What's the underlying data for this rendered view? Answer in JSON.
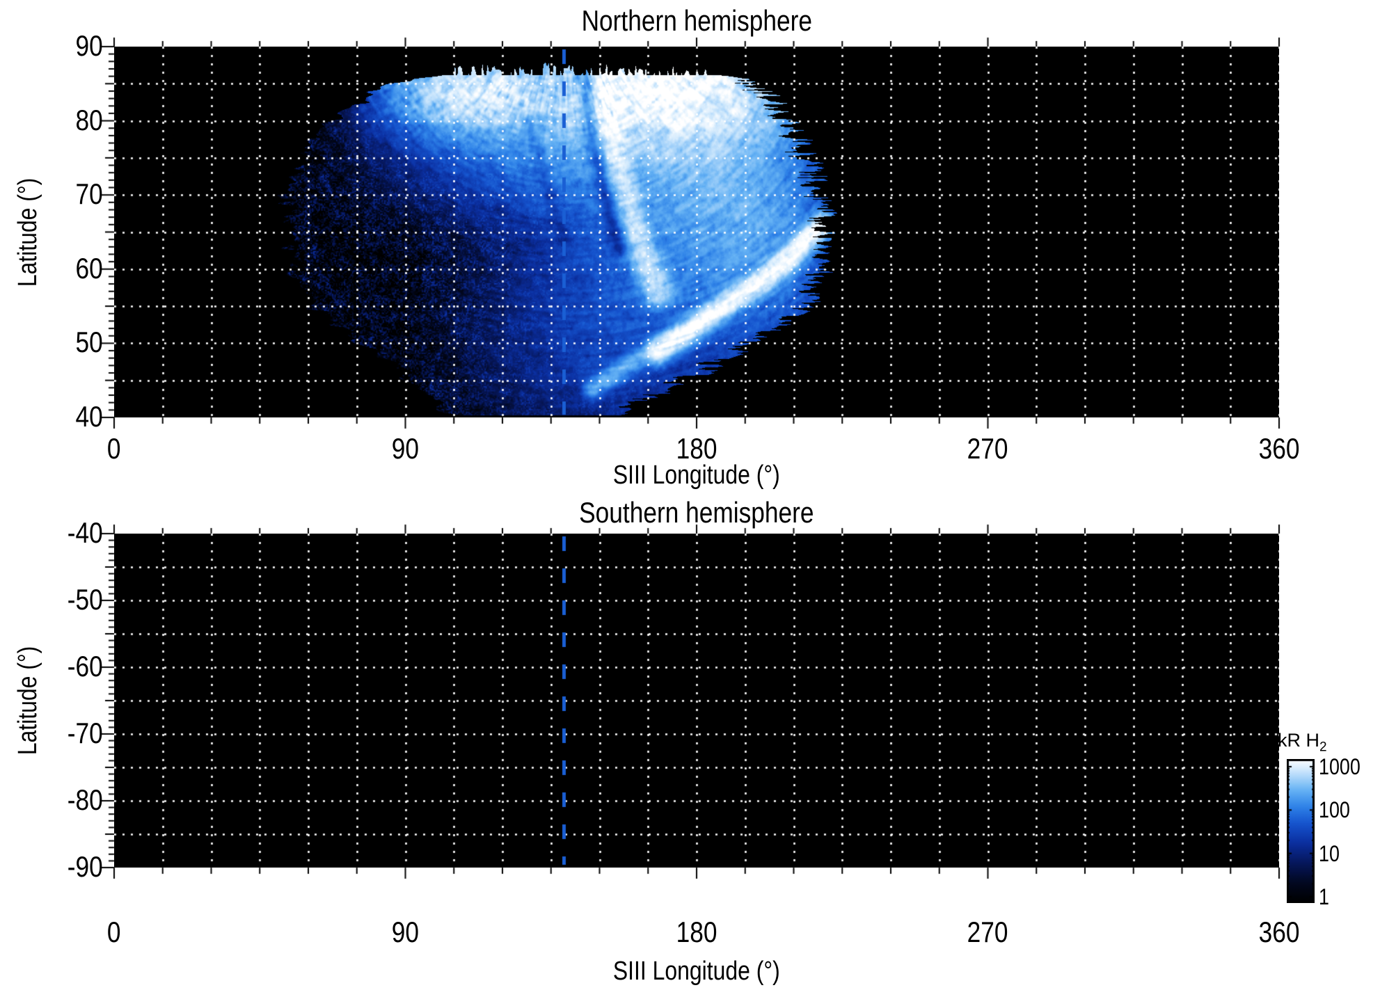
{
  "panels": {
    "north": {
      "title": "Northern hemisphere",
      "xlabel": "SIII Longitude (°)",
      "ylabel": "Latitude (°)",
      "x_tick_labels": [
        "0",
        "90",
        "180",
        "270",
        "360"
      ],
      "y_tick_labels": [
        "90",
        "80",
        "70",
        "60",
        "50",
        "40"
      ]
    },
    "south": {
      "title": "Southern hemisphere",
      "xlabel": "SIII Longitude (°)",
      "ylabel": "Latitude (°)",
      "x_tick_labels": [
        "0",
        "90",
        "180",
        "270",
        "360"
      ],
      "y_tick_labels": [
        "-40",
        "-50",
        "-60",
        "-70",
        "-80",
        "-90"
      ]
    }
  },
  "colorbar": {
    "label_main": "kR H",
    "label_sub": "2",
    "tick_labels": [
      "1000",
      "100",
      "10",
      "1"
    ],
    "tick_values": [
      1000,
      100,
      10,
      1
    ],
    "scale": "log"
  },
  "chart_data": [
    {
      "type": "heatmap",
      "title": "Northern hemisphere",
      "xlabel": "SIII Longitude (°)",
      "ylabel": "Latitude (°)",
      "xlim": [
        0,
        360
      ],
      "ylim": [
        40,
        90
      ],
      "x_major_ticks": [
        0,
        90,
        180,
        270,
        360
      ],
      "x_minor_step": 15,
      "y_major_step": 10,
      "y_minor_step": 1,
      "grid": {
        "x_step": 15,
        "y_step": 5,
        "style": "dotted",
        "color": "#ffffff"
      },
      "background": "#000000",
      "marker_line": {
        "x": 139,
        "style": "dashed",
        "color": "#1a5fd4"
      },
      "value_units": "kR H2",
      "value_scale": "log",
      "value_range": [
        1,
        1000
      ],
      "colormap_stops": [
        [
          0,
          "#000000"
        ],
        [
          0.14,
          "#020820"
        ],
        [
          0.28,
          "#06175c"
        ],
        [
          0.42,
          "#0b2fa0"
        ],
        [
          0.55,
          "#1553cd"
        ],
        [
          0.67,
          "#2f83e8"
        ],
        [
          0.78,
          "#64b1f4"
        ],
        [
          0.87,
          "#a8d4fa"
        ],
        [
          0.94,
          "#dbeefd"
        ],
        [
          1,
          "#ffffff"
        ]
      ],
      "coverage_boundary": [
        {
          "lat": 87.8,
          "lon_min": 128,
          "lon_max": 158
        },
        {
          "lat": 87.0,
          "lon_min": 112,
          "lon_max": 176
        },
        {
          "lat": 86.0,
          "lon_min": 98,
          "lon_max": 188
        },
        {
          "lat": 85.0,
          "lon_min": 84,
          "lon_max": 197
        },
        {
          "lat": 80.0,
          "lon_min": 66,
          "lon_max": 208
        },
        {
          "lat": 75.0,
          "lon_min": 57,
          "lon_max": 214
        },
        {
          "lat": 70.0,
          "lon_min": 54,
          "lon_max": 218
        },
        {
          "lat": 65.0,
          "lon_min": 54,
          "lon_max": 220
        },
        {
          "lat": 60.0,
          "lon_min": 55,
          "lon_max": 219
        },
        {
          "lat": 55.0,
          "lon_min": 62,
          "lon_max": 214
        },
        {
          "lat": 50.0,
          "lon_min": 76,
          "lon_max": 196
        },
        {
          "lat": 45.0,
          "lon_min": 92,
          "lon_max": 176
        },
        {
          "lat": 40.0,
          "lon_min": 104,
          "lon_max": 152
        }
      ],
      "features": {
        "blobs": [
          {
            "lon": 112,
            "lat": 84.5,
            "sx": 13,
            "sy": 3.5,
            "amp": 1000
          },
          {
            "lon": 170,
            "lat": 84.5,
            "sx": 19,
            "sy": 4.5,
            "amp": 1400
          },
          {
            "lon": 152,
            "lat": 80.0,
            "sx": 26,
            "sy": 6.0,
            "amp": 300
          },
          {
            "lon": 186,
            "lat": 73.0,
            "sx": 16,
            "sy": 8.0,
            "amp": 260
          },
          {
            "lon": 200,
            "lat": 64.0,
            "sx": 14,
            "sy": 7.0,
            "amp": 120
          },
          {
            "lon": 173,
            "lat": 64.0,
            "sx": 20,
            "sy": 10.0,
            "amp": 70
          },
          {
            "lon": 154,
            "lat": 52.0,
            "sx": 22,
            "sy": 9.0,
            "amp": 26
          }
        ],
        "arcs": [
          {
            "pts": [
              [
                150,
                86
              ],
              [
                153,
                78
              ],
              [
                158,
                70
              ],
              [
                163,
                63
              ],
              [
                168,
                57
              ]
            ],
            "sigma": 2.6,
            "amp": 700
          },
          {
            "pts": [
              [
                168,
                49
              ],
              [
                185,
                54
              ],
              [
                202,
                59
              ],
              [
                219,
                66
              ]
            ],
            "sigma": 2.0,
            "amp": 1400
          },
          {
            "pts": [
              [
                148,
                44
              ],
              [
                162,
                48
              ],
              [
                178,
                52
              ]
            ],
            "sigma": 1.7,
            "amp": 260
          }
        ],
        "dark_channels": [
          {
            "pts": [
              [
                145,
                87
              ],
              [
                147,
                79
              ],
              [
                151,
                71
              ],
              [
                156,
                63
              ]
            ],
            "sigma": 2.2,
            "depth": 0.8
          },
          {
            "pts": [
              [
                128,
                80
              ],
              [
                133,
                72
              ],
              [
                139,
                64
              ]
            ],
            "sigma": 1.6,
            "depth": 0.5
          }
        ]
      }
    },
    {
      "type": "heatmap",
      "title": "Southern hemisphere",
      "xlabel": "SIII Longitude (°)",
      "ylabel": "Latitude (°)",
      "xlim": [
        0,
        360
      ],
      "ylim": [
        -90,
        -40
      ],
      "x_major_ticks": [
        0,
        90,
        180,
        270,
        360
      ],
      "x_minor_step": 15,
      "y_major_step": 10,
      "y_minor_step": 1,
      "grid": {
        "x_step": 15,
        "y_step": 5,
        "style": "dotted",
        "color": "#ffffff"
      },
      "background": "#000000",
      "marker_line": {
        "x": 139,
        "style": "dashed",
        "color": "#1a5fd4"
      },
      "value_units": "kR H2",
      "value_scale": "log",
      "value_range": [
        1,
        1000
      ],
      "coverage_boundary": null,
      "features": null
    }
  ]
}
